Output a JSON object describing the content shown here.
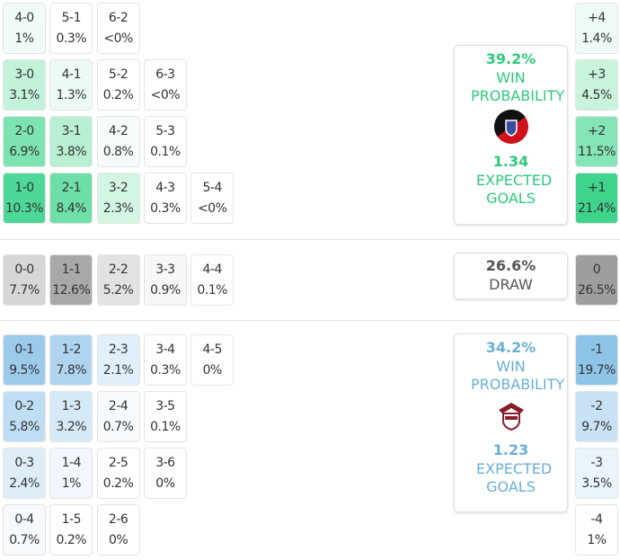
{
  "home": {
    "rows": [
      [
        {
          "score": "4-0",
          "pct": "1%",
          "color": "#f2fcf7"
        },
        {
          "score": "5-1",
          "pct": "0.3%",
          "color": "#ffffff"
        },
        {
          "score": "6-2",
          "pct": "<0%",
          "color": "#ffffff"
        }
      ],
      [
        {
          "score": "3-0",
          "pct": "3.1%",
          "color": "#c2f2d9"
        },
        {
          "score": "4-1",
          "pct": "1.3%",
          "color": "#edfaf3"
        },
        {
          "score": "5-2",
          "pct": "0.2%",
          "color": "#ffffff"
        },
        {
          "score": "6-3",
          "pct": "<0%",
          "color": "#ffffff"
        }
      ],
      [
        {
          "score": "2-0",
          "pct": "6.9%",
          "color": "#7de3b1"
        },
        {
          "score": "3-1",
          "pct": "3.8%",
          "color": "#b8efd3"
        },
        {
          "score": "4-2",
          "pct": "0.8%",
          "color": "#f6fdf9"
        },
        {
          "score": "5-3",
          "pct": "0.1%",
          "color": "#ffffff"
        }
      ],
      [
        {
          "score": "1-0",
          "pct": "10.3%",
          "color": "#4ed897"
        },
        {
          "score": "2-1",
          "pct": "8.4%",
          "color": "#6ddfa7"
        },
        {
          "score": "3-2",
          "pct": "2.3%",
          "color": "#d3f6e3"
        },
        {
          "score": "4-3",
          "pct": "0.3%",
          "color": "#ffffff"
        },
        {
          "score": "5-4",
          "pct": "<0%",
          "color": "#ffffff"
        }
      ]
    ],
    "gd": [
      {
        "label": "+4",
        "pct": "1.4%",
        "color": "#eefbf4"
      },
      {
        "label": "+3",
        "pct": "4.5%",
        "color": "#c9f3dd"
      },
      {
        "label": "+2",
        "pct": "11.5%",
        "color": "#86e5b6"
      },
      {
        "label": "+1",
        "pct": "21.4%",
        "color": "#3fd48c"
      }
    ],
    "panel": {
      "pct": "39.2%",
      "label": "WIN PROBABILITY",
      "xg": "1.34",
      "xg_label": "EXPECTED GOALS"
    }
  },
  "draw": {
    "rows": [
      [
        {
          "score": "0-0",
          "pct": "7.7%",
          "color": "#d6d6d6"
        },
        {
          "score": "1-1",
          "pct": "12.6%",
          "color": "#a8a8a8"
        },
        {
          "score": "2-2",
          "pct": "5.2%",
          "color": "#e2e2e2"
        },
        {
          "score": "3-3",
          "pct": "0.9%",
          "color": "#f7f7f7"
        },
        {
          "score": "4-4",
          "pct": "0.1%",
          "color": "#ffffff"
        }
      ]
    ],
    "gd": [
      {
        "label": "0",
        "pct": "26.5%",
        "color": "#9e9e9e"
      }
    ],
    "panel": {
      "pct": "26.6%",
      "label": "DRAW"
    }
  },
  "away": {
    "rows": [
      [
        {
          "score": "0-1",
          "pct": "9.5%",
          "color": "#9ccbea"
        },
        {
          "score": "1-2",
          "pct": "7.8%",
          "color": "#aed4ef"
        },
        {
          "score": "2-3",
          "pct": "2.1%",
          "color": "#e0eff9"
        },
        {
          "score": "3-4",
          "pct": "0.3%",
          "color": "#ffffff"
        },
        {
          "score": "4-5",
          "pct": "0%",
          "color": "#ffffff"
        }
      ],
      [
        {
          "score": "0-2",
          "pct": "5.8%",
          "color": "#c0def3"
        },
        {
          "score": "1-3",
          "pct": "3.2%",
          "color": "#d6e9f7"
        },
        {
          "score": "2-4",
          "pct": "0.7%",
          "color": "#f6fafd"
        },
        {
          "score": "3-5",
          "pct": "0.1%",
          "color": "#ffffff"
        }
      ],
      [
        {
          "score": "0-3",
          "pct": "2.4%",
          "color": "#deeef9"
        },
        {
          "score": "1-4",
          "pct": "1%",
          "color": "#f1f7fc"
        },
        {
          "score": "2-5",
          "pct": "0.2%",
          "color": "#ffffff"
        },
        {
          "score": "3-6",
          "pct": "0%",
          "color": "#ffffff"
        }
      ],
      [
        {
          "score": "0-4",
          "pct": "0.7%",
          "color": "#f6fafd"
        },
        {
          "score": "1-5",
          "pct": "0.2%",
          "color": "#ffffff"
        },
        {
          "score": "2-6",
          "pct": "0%",
          "color": "#ffffff"
        }
      ]
    ],
    "gd": [
      {
        "label": "-1",
        "pct": "19.7%",
        "color": "#8ec4e7"
      },
      {
        "label": "-2",
        "pct": "9.7%",
        "color": "#c7e2f4"
      },
      {
        "label": "-3",
        "pct": "3.5%",
        "color": "#eaf4fb"
      },
      {
        "label": "-4",
        "pct": "1%",
        "color": "#ffffff"
      }
    ],
    "panel": {
      "pct": "34.2%",
      "label": "WIN PROBABILITY",
      "xg": "1.23",
      "xg_label": "EXPECTED GOALS"
    }
  }
}
